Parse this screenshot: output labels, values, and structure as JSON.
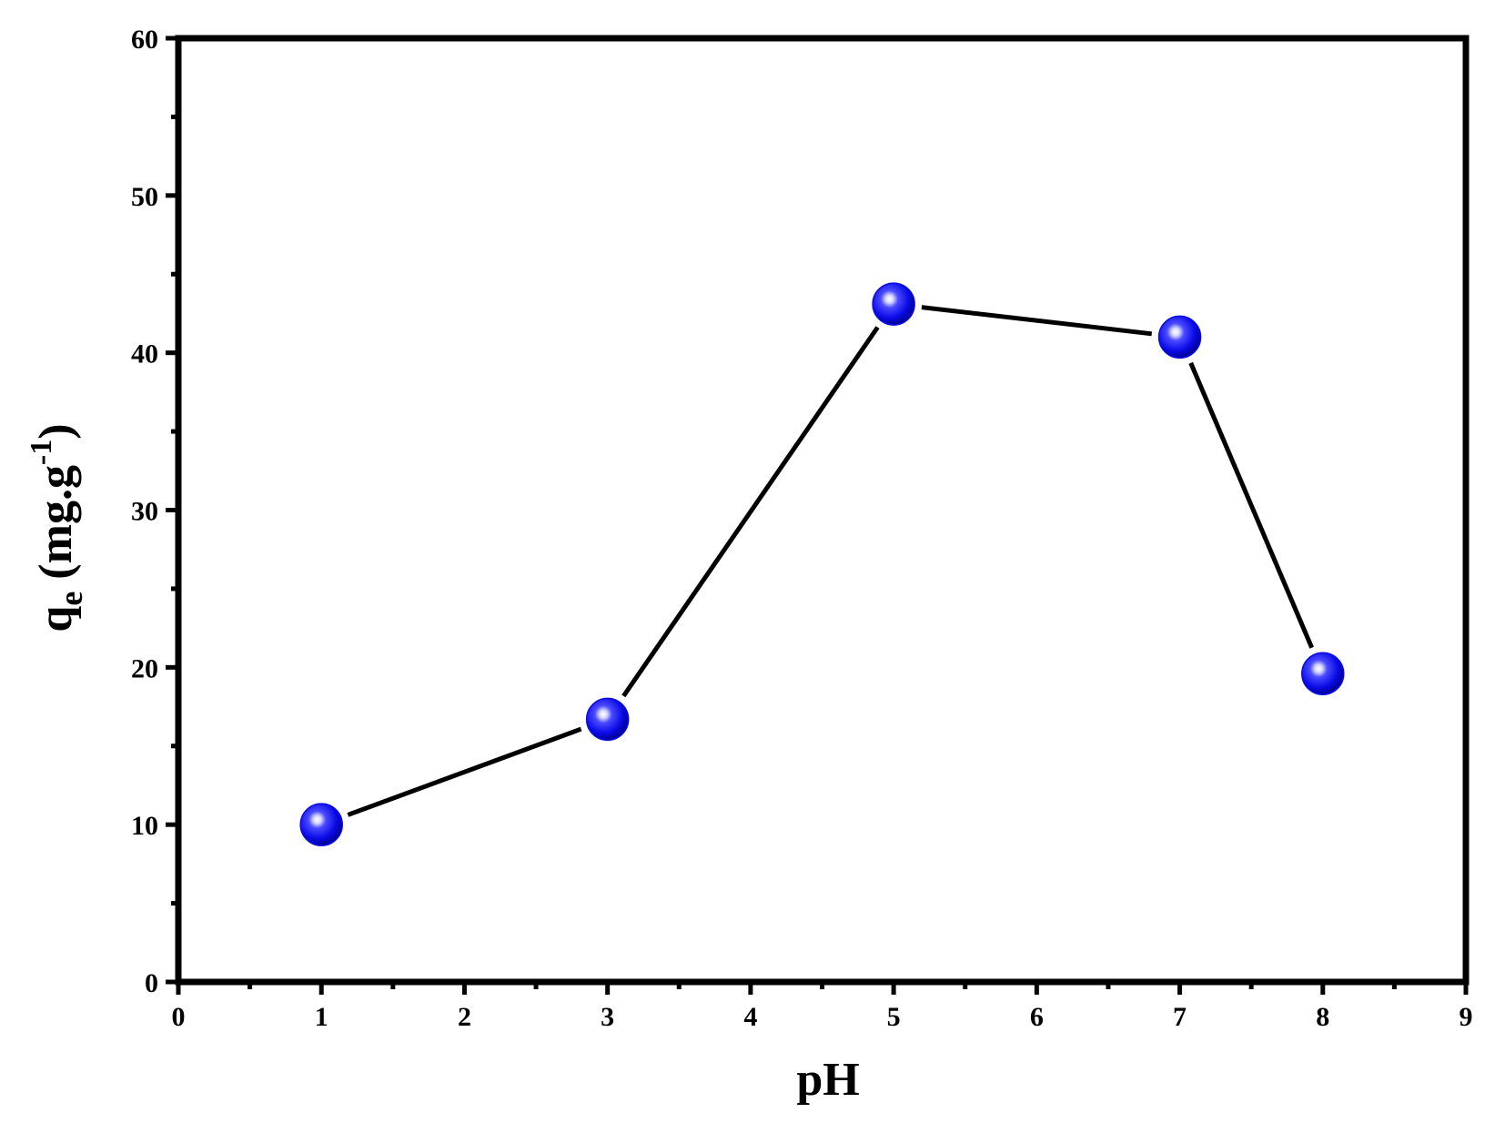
{
  "chart_data": {
    "type": "line",
    "title": "",
    "xlabel": "pH",
    "ylabel": {
      "main": "q",
      "subscript": "e",
      "units_prefix": " (mg.g",
      "superscript": "-1",
      "units_suffix": ")"
    },
    "xlim": [
      0,
      9
    ],
    "ylim": [
      0,
      60
    ],
    "x_ticks": [
      "0",
      "1",
      "2",
      "3",
      "4",
      "5",
      "6",
      "7",
      "8",
      "9"
    ],
    "y_ticks": [
      "0",
      "10",
      "20",
      "30",
      "40",
      "50",
      "60"
    ],
    "series": [
      {
        "x": [
          1,
          3,
          5,
          7,
          8
        ],
        "y": [
          10.0,
          16.7,
          43.1,
          41.0,
          19.6
        ],
        "marker": "sphere",
        "marker_color": "#0a0ae6",
        "line_color": "#000000"
      }
    ],
    "grid": false,
    "legend": false
  }
}
